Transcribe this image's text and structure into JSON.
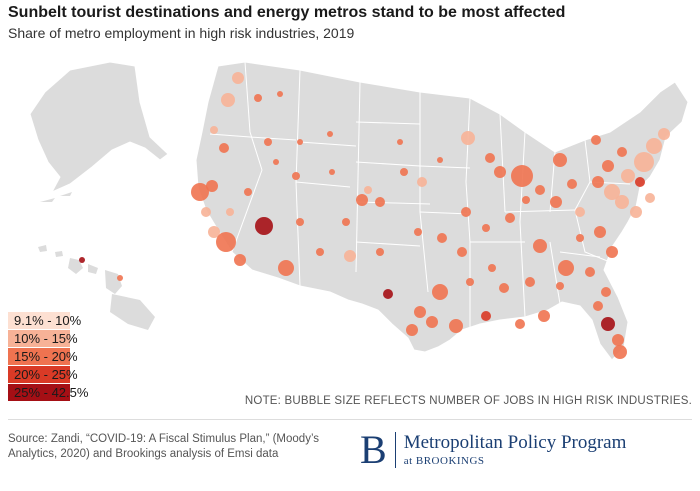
{
  "header": {
    "title": "Sunbelt tourist destinations and energy metros stand to be most affected",
    "subtitle": "Share of metro employment in high risk industries, 2019"
  },
  "legend": {
    "items": [
      {
        "label": "9.1% - 10%",
        "color": "#fde0d2"
      },
      {
        "label": "10% - 15%",
        "color": "#f7b297"
      },
      {
        "label": "15% - 20%",
        "color": "#ef7350"
      },
      {
        "label": "20% - 25%",
        "color": "#d93a26"
      },
      {
        "label": "25% - 42.5%",
        "color": "#a50f15"
      }
    ]
  },
  "note": "NOTE: BUBBLE SIZE REFLECTS NUMBER OF JOBS IN HIGH RISK INDUSTRIES.",
  "source": "Source: Zandi, “COVID-19: A Fiscal Stimulus Plan,” (Moody’s Analytics, 2020) and Brookings analysis of Emsi data",
  "brand": {
    "letter": "B",
    "name": "Metropolitan Policy Program",
    "sub": "at BROOKINGS",
    "color": "#1b3f73"
  },
  "map": {
    "land_color": "#dcdcdc",
    "border_color": "#ffffff"
  }
}
